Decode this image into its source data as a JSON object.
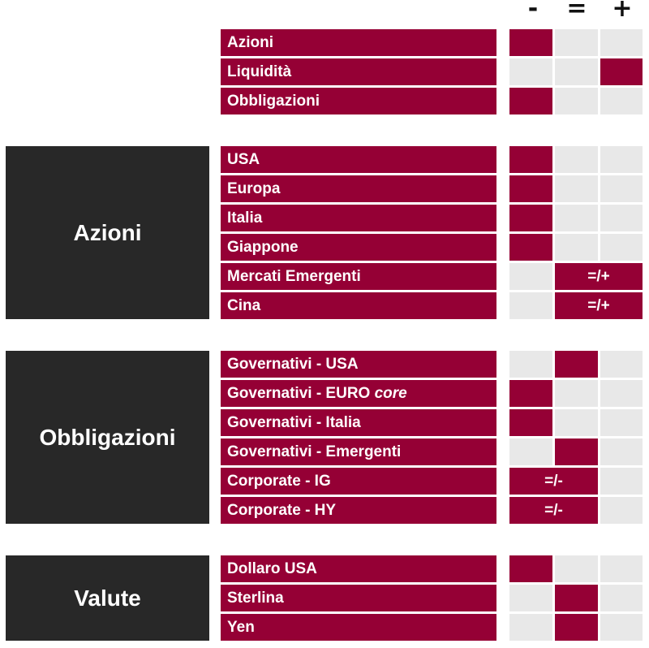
{
  "columns": [
    "-",
    "=",
    "+"
  ],
  "colors": {
    "accent": "#950035",
    "dark_box": "#282828",
    "empty_cell": "#e8e8e8"
  },
  "groups": [
    {
      "title": "",
      "rows": [
        {
          "label": "Azioni",
          "rating": "-",
          "marker": ""
        },
        {
          "label": "Liquidità",
          "rating": "+",
          "marker": ""
        },
        {
          "label": "Obbligazioni",
          "rating": "-",
          "marker": ""
        }
      ]
    },
    {
      "title": "Azioni",
      "rows": [
        {
          "label": "USA",
          "rating": "-",
          "marker": ""
        },
        {
          "label": "Europa",
          "rating": "-",
          "marker": ""
        },
        {
          "label": "Italia",
          "rating": "-",
          "marker": ""
        },
        {
          "label": "Giappone",
          "rating": "-",
          "marker": ""
        },
        {
          "label": "Mercati Emergenti",
          "rating": "=/+",
          "marker": "=/+"
        },
        {
          "label": "Cina",
          "rating": "=/+",
          "marker": "=/+"
        }
      ]
    },
    {
      "title": "Obbligazioni",
      "rows": [
        {
          "label": "Governativi - USA",
          "rating": "=",
          "marker": ""
        },
        {
          "label": "Governativi - EURO ",
          "label_italic": "core",
          "rating": "-",
          "marker": ""
        },
        {
          "label": "Governativi - Italia",
          "rating": "-",
          "marker": ""
        },
        {
          "label": "Governativi - Emergenti",
          "rating": "=",
          "marker": ""
        },
        {
          "label": "Corporate - IG",
          "rating": "=/-",
          "marker": "=/-"
        },
        {
          "label": "Corporate - HY",
          "rating": "=/-",
          "marker": "=/-"
        }
      ]
    },
    {
      "title": "Valute",
      "rows": [
        {
          "label": "Dollaro USA",
          "rating": "-",
          "marker": ""
        },
        {
          "label": "Sterlina",
          "rating": "=",
          "marker": ""
        },
        {
          "label": "Yen",
          "rating": "=",
          "marker": ""
        }
      ]
    }
  ]
}
